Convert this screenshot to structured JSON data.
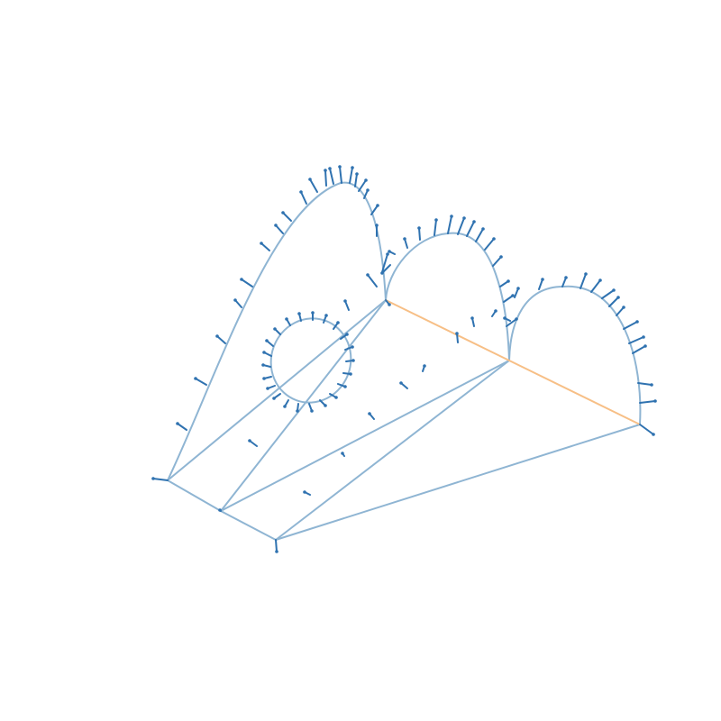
{
  "colors": {
    "edge": "#8fb5d3",
    "highlight_edge": "#f7bf86",
    "normal": "#2f72b0",
    "background": "#ffffff"
  },
  "diagram": {
    "type": "3d-wireframe-with-normals",
    "description_visible_text": "",
    "components": [
      "base-outline",
      "back-arch",
      "middle-arch",
      "front-arch",
      "circular-hole",
      "highlighted-ridge-edge",
      "surface-normal-arrows"
    ]
  }
}
